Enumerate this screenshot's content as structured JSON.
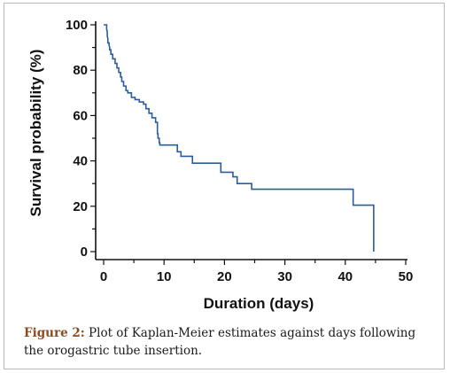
{
  "figure": {
    "caption_label": "Figure 2:",
    "caption_text": "Plot of Kaplan-Meier estimates against days following the orogastric tube insertion."
  },
  "colors": {
    "curve": "#2b5c9c",
    "axis": "#111111",
    "caption_label": "#8a4a22"
  },
  "chart_data": {
    "type": "line",
    "title": "",
    "xlabel": "Duration (days)",
    "ylabel": "Survival probability (%)",
    "xlim": [
      0,
      50
    ],
    "ylim": [
      0,
      100
    ],
    "x_ticks": [
      "0",
      "10",
      "20",
      "30",
      "40",
      "50"
    ],
    "y_ticks": [
      "0",
      "20",
      "40",
      "60",
      "80",
      "100"
    ],
    "grid": false,
    "legend": "none",
    "step": true,
    "series": [
      {
        "points": [
          [
            0,
            100
          ],
          [
            0.5,
            100
          ],
          [
            0.5,
            98
          ],
          [
            0.6,
            97
          ],
          [
            0.6,
            95
          ],
          [
            0.7,
            94
          ],
          [
            0.7,
            92
          ],
          [
            0.9,
            92
          ],
          [
            0.9,
            91
          ],
          [
            1.0,
            90
          ],
          [
            1.0,
            89
          ],
          [
            1.2,
            89
          ],
          [
            1.2,
            87
          ],
          [
            1.5,
            87
          ],
          [
            1.5,
            85
          ],
          [
            1.9,
            85
          ],
          [
            1.9,
            83
          ],
          [
            2.2,
            83
          ],
          [
            2.2,
            81
          ],
          [
            2.5,
            81
          ],
          [
            2.5,
            79
          ],
          [
            2.8,
            79
          ],
          [
            2.8,
            77
          ],
          [
            3.0,
            77
          ],
          [
            3.0,
            75
          ],
          [
            3.3,
            75
          ],
          [
            3.3,
            73
          ],
          [
            3.7,
            73
          ],
          [
            3.7,
            71
          ],
          [
            4.0,
            71
          ],
          [
            4.0,
            70
          ],
          [
            4.6,
            70
          ],
          [
            4.6,
            68
          ],
          [
            5.2,
            68
          ],
          [
            5.2,
            67
          ],
          [
            5.9,
            67
          ],
          [
            5.9,
            66
          ],
          [
            6.6,
            66
          ],
          [
            6.6,
            65
          ],
          [
            7.0,
            65
          ],
          [
            7.0,
            63
          ],
          [
            7.5,
            63
          ],
          [
            7.5,
            61
          ],
          [
            8.0,
            61
          ],
          [
            8.0,
            59
          ],
          [
            8.6,
            59
          ],
          [
            8.6,
            57
          ],
          [
            8.9,
            57
          ],
          [
            8.9,
            52
          ],
          [
            9.0,
            52
          ],
          [
            9.0,
            50
          ],
          [
            9.2,
            50
          ],
          [
            9.2,
            48
          ],
          [
            9.3,
            48
          ],
          [
            9.3,
            47
          ],
          [
            12.2,
            47
          ],
          [
            12.2,
            44
          ],
          [
            12.8,
            44
          ],
          [
            12.8,
            42
          ],
          [
            14.7,
            42
          ],
          [
            14.7,
            39
          ],
          [
            19.4,
            39
          ],
          [
            19.4,
            35
          ],
          [
            21.4,
            35
          ],
          [
            21.4,
            33
          ],
          [
            22.1,
            33
          ],
          [
            22.1,
            30
          ],
          [
            24.5,
            30
          ],
          [
            24.5,
            27.5
          ],
          [
            41.3,
            27.5
          ],
          [
            41.3,
            20.5
          ],
          [
            44.7,
            20.5
          ],
          [
            44.7,
            0
          ]
        ]
      }
    ]
  }
}
